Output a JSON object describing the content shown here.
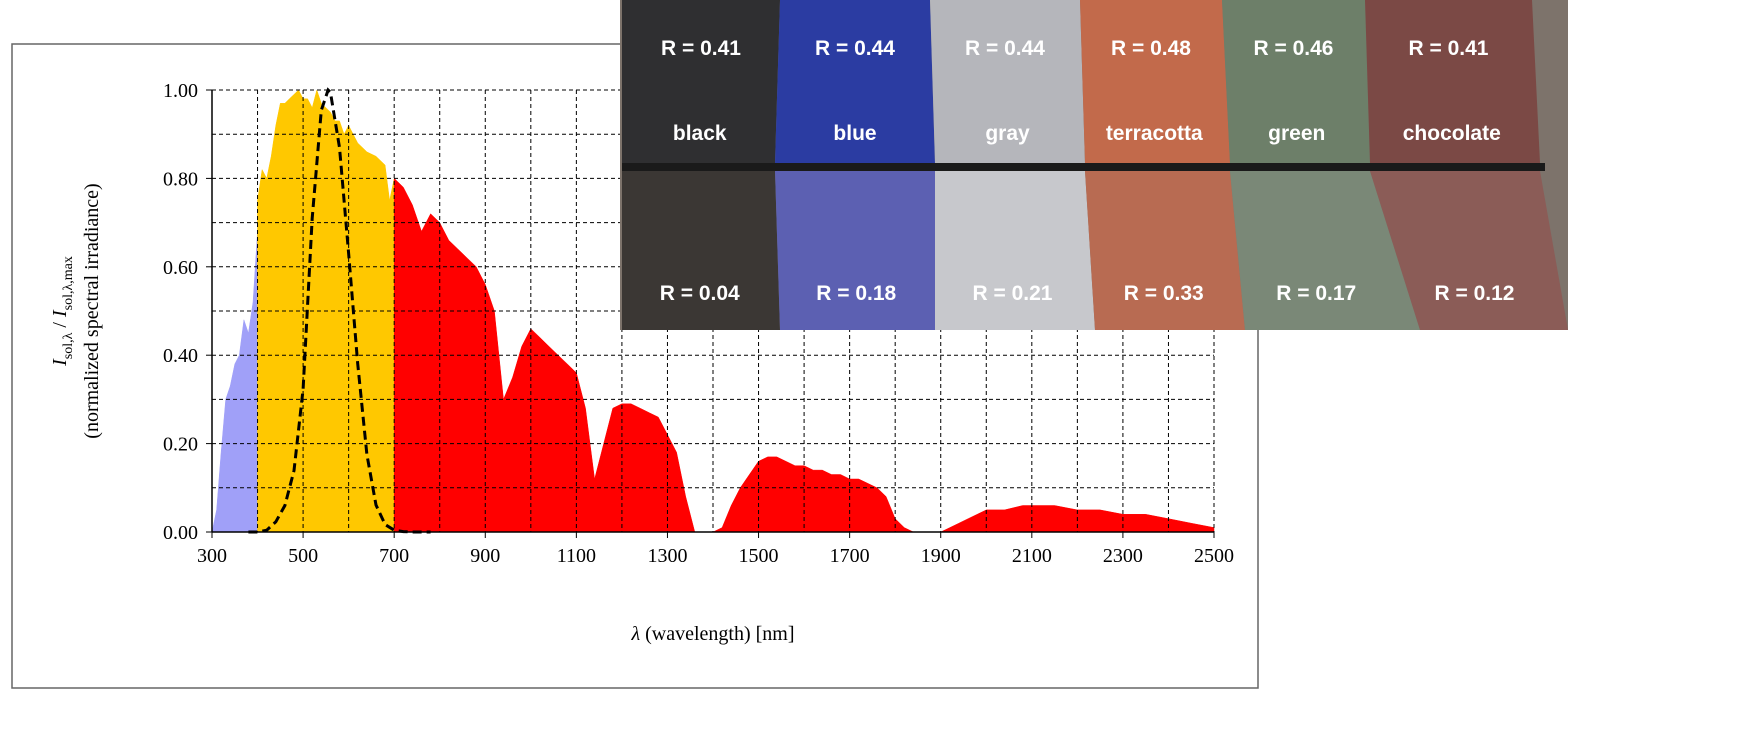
{
  "chart_data": {
    "type": "area",
    "xlabel": [
      {
        "text": "λ",
        "italic": true
      },
      {
        "text": " (wavelength) [nm]"
      }
    ],
    "ylabel": [
      {
        "text": "I",
        "italic": true
      },
      {
        "text": "sol,λ",
        "sub": true
      },
      {
        "text": " / "
      },
      {
        "text": "I",
        "italic": true
      },
      {
        "text": "sol,λ,max",
        "sub": true
      }
    ],
    "ylabel2": "(normalized spectral irradiance)",
    "xlim": [
      300,
      2500
    ],
    "ylim": [
      0,
      1
    ],
    "xticks": [
      300,
      500,
      700,
      900,
      1100,
      1300,
      1500,
      1700,
      1900,
      2100,
      2300,
      2500
    ],
    "xminor_ticks": [
      400,
      600,
      800,
      1000,
      1200,
      1400,
      1600,
      1800,
      2000,
      2200,
      2400
    ],
    "yticks": [
      {
        "value": 0,
        "label": "0.00"
      },
      {
        "value": 0.2,
        "label": "0.20"
      },
      {
        "value": 0.4,
        "label": "0.40"
      },
      {
        "value": 0.6,
        "label": "0.60"
      },
      {
        "value": 0.8,
        "label": "0.80"
      },
      {
        "value": 1,
        "label": "1.00"
      }
    ],
    "yminor_ticks": [
      0.1,
      0.3,
      0.5,
      0.7,
      0.9
    ],
    "grid": true,
    "series": [
      {
        "type": "area",
        "color": "#a0a0f8",
        "x": [
          300,
          310,
          320,
          330,
          340,
          350,
          360,
          370,
          380,
          390,
          400
        ],
        "values": [
          0,
          0.05,
          0.18,
          0.3,
          0.33,
          0.38,
          0.4,
          0.48,
          0.45,
          0.52,
          0.68
        ]
      },
      {
        "type": "area",
        "color": "#ffc800",
        "x": [
          400,
          410,
          420,
          430,
          440,
          450,
          460,
          470,
          480,
          490,
          500,
          510,
          520,
          530,
          540,
          550,
          560,
          570,
          580,
          590,
          600,
          620,
          640,
          660,
          680,
          690,
          700
        ],
        "values": [
          0.75,
          0.82,
          0.8,
          0.85,
          0.92,
          0.97,
          0.97,
          0.98,
          0.99,
          1,
          0.98,
          0.98,
          0.96,
          1,
          0.97,
          0.96,
          0.95,
          0.93,
          0.93,
          0.9,
          0.92,
          0.88,
          0.86,
          0.85,
          0.83,
          0.75,
          0.8
        ]
      },
      {
        "type": "area",
        "color": "#ff0000",
        "x": [
          700,
          720,
          740,
          760,
          780,
          800,
          820,
          840,
          860,
          880,
          900,
          920,
          940,
          960,
          980,
          1000,
          1020,
          1040,
          1060,
          1080,
          1100,
          1120,
          1140,
          1160,
          1180,
          1200,
          1220,
          1240,
          1260,
          1280,
          1300,
          1320,
          1340,
          1360,
          1380,
          1400,
          1420,
          1440,
          1460,
          1480,
          1500,
          1520,
          1540,
          1560,
          1580,
          1600,
          1620,
          1640,
          1660,
          1680,
          1700,
          1720,
          1740,
          1760,
          1780,
          1800,
          1820,
          1840,
          1860,
          1880,
          1900,
          1920,
          1940,
          1960,
          1980,
          2000,
          2040,
          2080,
          2100,
          2150,
          2200,
          2250,
          2300,
          2350,
          2400,
          2450,
          2500
        ],
        "values": [
          0.8,
          0.78,
          0.74,
          0.68,
          0.72,
          0.7,
          0.66,
          0.64,
          0.62,
          0.6,
          0.56,
          0.5,
          0.3,
          0.35,
          0.42,
          0.46,
          0.44,
          0.42,
          0.4,
          0.38,
          0.36,
          0.28,
          0.12,
          0.2,
          0.28,
          0.29,
          0.29,
          0.28,
          0.27,
          0.26,
          0.22,
          0.18,
          0.08,
          0,
          0,
          0,
          0.01,
          0.06,
          0.1,
          0.13,
          0.16,
          0.17,
          0.17,
          0.16,
          0.15,
          0.15,
          0.14,
          0.14,
          0.13,
          0.13,
          0.12,
          0.12,
          0.11,
          0.1,
          0.08,
          0.03,
          0.01,
          0,
          0,
          0,
          0,
          0.01,
          0.02,
          0.03,
          0.04,
          0.05,
          0.05,
          0.06,
          0.06,
          0.06,
          0.05,
          0.05,
          0.04,
          0.04,
          0.03,
          0.02,
          0.01
        ]
      },
      {
        "type": "line",
        "dashed": true,
        "color": "#000000",
        "x": [
          380,
          400,
          420,
          440,
          460,
          480,
          500,
          520,
          540,
          555,
          560,
          580,
          600,
          620,
          640,
          660,
          680,
          700,
          720,
          740,
          780
        ],
        "values": [
          0,
          0,
          0.004,
          0.023,
          0.06,
          0.139,
          0.323,
          0.71,
          0.954,
          1,
          0.995,
          0.87,
          0.631,
          0.381,
          0.175,
          0.061,
          0.017,
          0.004,
          0.001,
          0,
          0
        ]
      }
    ]
  },
  "inset": {
    "swatches": [
      {
        "name": "black",
        "top": "R = 0.41",
        "bottom": "R = 0.04",
        "color_top": "#2f2f31",
        "color_bottom": "#3b3734"
      },
      {
        "name": "blue",
        "top": "R = 0.44",
        "bottom": "R = 0.18",
        "color_top": "#2b3ca2",
        "color_bottom": "#5c60b2"
      },
      {
        "name": "gray",
        "top": "R = 0.44",
        "bottom": "R = 0.21",
        "color_top": "#b5b6bb",
        "color_bottom": "#c7c8cc"
      },
      {
        "name": "terracotta",
        "top": "R = 0.48",
        "bottom": "R = 0.33",
        "color_top": "#c26a4b",
        "color_bottom": "#b86b52"
      },
      {
        "name": "green",
        "top": "R = 0.46",
        "bottom": "R = 0.17",
        "color_top": "#6d7f69",
        "color_bottom": "#7a8877"
      },
      {
        "name": "chocolate",
        "top": "R = 0.41",
        "bottom": "R = 0.12",
        "color_top": "#7b4945",
        "color_bottom": "#8b5c57"
      }
    ]
  }
}
